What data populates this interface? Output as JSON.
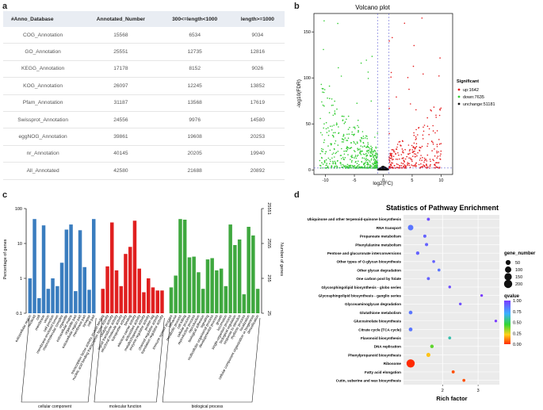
{
  "panels": {
    "a": "a",
    "b": "b",
    "c": "c",
    "d": "d"
  },
  "table": {
    "headers": [
      "#Anno_Database",
      "Annotated_Number",
      "300<=length<1000",
      "length>=1000"
    ],
    "rows": [
      [
        "COG_Annotation",
        "15568",
        "6534",
        "9034"
      ],
      [
        "GO_Annotation",
        "25551",
        "12735",
        "12816"
      ],
      [
        "KEGG_Annotation",
        "17178",
        "8152",
        "9026"
      ],
      [
        "KOG_Annotation",
        "26097",
        "12245",
        "13852"
      ],
      [
        "Pfam_Annotation",
        "31187",
        "13568",
        "17619"
      ],
      [
        "Swissprot_Annotation",
        "24556",
        "9976",
        "14580"
      ],
      [
        "eggNOG_Annotation",
        "39861",
        "19608",
        "20253"
      ],
      [
        "nr_Annotation",
        "40145",
        "20205",
        "19940"
      ],
      [
        "All_Annotated",
        "42580",
        "21688",
        "20892"
      ]
    ]
  },
  "chart_data": [
    {
      "type": "scatter",
      "title": "Volcano plot",
      "xlabel": "log2(FC)",
      "ylabel": "-log10(FDR)",
      "xlim": [
        -12,
        12
      ],
      "ylim": [
        -5,
        170
      ],
      "xticks": [
        -10,
        -5,
        0,
        5,
        10
      ],
      "yticks": [
        0,
        50,
        100,
        150
      ],
      "thresholds": {
        "x": [
          -1,
          1
        ],
        "y": 2
      },
      "legend": {
        "title": "Significant",
        "entries": [
          {
            "label": "up:1642",
            "color": "#e41a1c"
          },
          {
            "label": "down:7635",
            "color": "#33cc33"
          },
          {
            "label": "unchange:51181",
            "color": "#111111"
          }
        ]
      },
      "series": [
        {
          "name": "up",
          "count": 1642,
          "color": "#e41a1c",
          "x_range": [
            1,
            10
          ],
          "y_max": 165
        },
        {
          "name": "down",
          "count": 7635,
          "color": "#33cc33",
          "x_range": [
            -11,
            -1
          ],
          "y_max": 162
        },
        {
          "name": "unchange",
          "count": 51181,
          "color": "#111111",
          "x_range": [
            -1,
            1
          ],
          "y_max": 4
        }
      ]
    },
    {
      "type": "bar",
      "xlabel": "",
      "ylabel": "Percentage of genes",
      "ylabel_right": "Number of genes",
      "scale": "log",
      "ylim": [
        0.1,
        100
      ],
      "yticks_left": [
        "100",
        "10",
        "1",
        "0.1"
      ],
      "yticks_right": [
        "25551",
        "2555",
        "255",
        "25"
      ],
      "groups": [
        {
          "name": "cellular component",
          "color": "#3a7dbf",
          "categories": [
            "extracellular region",
            "nucleoid",
            "cell",
            "membrane",
            "virion",
            "cell junction",
            "membrane-enclosed lumen",
            "macromolecular complex",
            "organelle",
            "extracellular matrix",
            "organelle part",
            "extracellular region part",
            "membrane part",
            "synapse",
            "cell part"
          ],
          "values": [
            1,
            50,
            0.27,
            33,
            0.5,
            1,
            0.6,
            2.8,
            25,
            35,
            0.43,
            24,
            2.1,
            0.47,
            50
          ]
        },
        {
          "name": "molecular function",
          "color": "#e02020",
          "categories": [
            "transcription factor activity, protein binding",
            "nucleic acid binding transcription factor activity",
            "catalytic activity",
            "signal transducer activity",
            "structural molecule activity",
            "transporter activity",
            "binding",
            "electron carrier activity",
            "antioxidant activity",
            "metallochaperone activity",
            "enzyme regulator activity",
            "protein tag",
            "channel regulator activity",
            "translation regulator activity"
          ],
          "values": [
            0.5,
            2.2,
            40,
            1.7,
            0.6,
            5,
            8,
            45,
            1.9,
            0.4,
            1.0,
            0.55,
            0.45,
            0.45
          ]
        },
        {
          "name": "biological process",
          "color": "#3fa83f",
          "categories": [
            "immune system process",
            "behavior",
            "metabolic process",
            "cell killing",
            "cellular process",
            "reproductive process",
            "reproduction",
            "biological adhesion",
            "signaling",
            "multicellular organismal process",
            "developmental process",
            "growth",
            "locomotion",
            "single-organism process",
            "biological regulation",
            "response to stimulus",
            "rhythmic process",
            "localization",
            "cellular component organization or biogenesis",
            "detoxification"
          ],
          "values": [
            0.55,
            1.2,
            50,
            48,
            4,
            4.2,
            1.5,
            0.5,
            3.5,
            3.8,
            1.7,
            1.9,
            0.6,
            35,
            9,
            13,
            0.35,
            30,
            17,
            0.5
          ]
        }
      ]
    },
    {
      "type": "scatter",
      "title": "Statistics of Pathway Enrichment",
      "xlabel": "Rich factor",
      "ylabel": "",
      "xlim": [
        0.9,
        3.6
      ],
      "xticks": [
        2,
        3
      ],
      "size_legend": {
        "title": "gene_number",
        "values": [
          "50",
          "100",
          "150",
          "200"
        ]
      },
      "color_legend": {
        "title": "qvalue",
        "ticks": [
          "1.00",
          "0.75",
          "0.50",
          "0.25",
          "0.00"
        ]
      },
      "points": [
        {
          "pathway": "Ubiquinone and other terpenoid-quinone biosynthesis",
          "rich_factor": 1.6,
          "gene_number": 10,
          "qvalue": 0.95
        },
        {
          "pathway": "RNA transport",
          "rich_factor": 1.1,
          "gene_number": 70,
          "qvalue": 0.85
        },
        {
          "pathway": "Propanoate metabolism",
          "rich_factor": 1.5,
          "gene_number": 12,
          "qvalue": 0.9
        },
        {
          "pathway": "Phenylalanine metabolism",
          "rich_factor": 1.55,
          "gene_number": 12,
          "qvalue": 0.9
        },
        {
          "pathway": "Pentose and glucuronate interconversions",
          "rich_factor": 1.3,
          "gene_number": 15,
          "qvalue": 0.9
        },
        {
          "pathway": "Other types of O-glycan biosynthesis",
          "rich_factor": 1.75,
          "gene_number": 8,
          "qvalue": 0.9
        },
        {
          "pathway": "Other glycan degradation",
          "rich_factor": 1.9,
          "gene_number": 8,
          "qvalue": 0.85
        },
        {
          "pathway": "One carbon pool by folate",
          "rich_factor": 1.6,
          "gene_number": 10,
          "qvalue": 0.9
        },
        {
          "pathway": "Glycosphingolipid biosynthesis - globo series",
          "rich_factor": 2.2,
          "gene_number": 6,
          "qvalue": 0.95
        },
        {
          "pathway": "Glycosphingolipid biosynthesis - ganglio series",
          "rich_factor": 3.1,
          "gene_number": 5,
          "qvalue": 1.0
        },
        {
          "pathway": "Glycosaminoglycan degradation",
          "rich_factor": 2.5,
          "gene_number": 6,
          "qvalue": 0.95
        },
        {
          "pathway": "Glutathione metabolism",
          "rich_factor": 1.1,
          "gene_number": 20,
          "qvalue": 0.85
        },
        {
          "pathway": "Glucosinolate biosynthesis",
          "rich_factor": 3.5,
          "gene_number": 5,
          "qvalue": 1.0
        },
        {
          "pathway": "Citrate cycle (TCA cycle)",
          "rich_factor": 1.1,
          "gene_number": 22,
          "qvalue": 0.85
        },
        {
          "pathway": "Flavonoid biosynthesis",
          "rich_factor": 2.2,
          "gene_number": 8,
          "qvalue": 0.6
        },
        {
          "pathway": "DNA replication",
          "rich_factor": 1.7,
          "gene_number": 18,
          "qvalue": 0.4
        },
        {
          "pathway": "Phenylpropanoid biosynthesis",
          "rich_factor": 1.6,
          "gene_number": 28,
          "qvalue": 0.2
        },
        {
          "pathway": "Ribosome",
          "rich_factor": 1.1,
          "gene_number": 200,
          "qvalue": 0.0
        },
        {
          "pathway": "Fatty acid elongation",
          "rich_factor": 2.3,
          "gene_number": 10,
          "qvalue": 0.05
        },
        {
          "pathway": "Cutin, suberine and wax biosynthesis",
          "rich_factor": 2.6,
          "gene_number": 8,
          "qvalue": 0.05
        }
      ]
    }
  ]
}
